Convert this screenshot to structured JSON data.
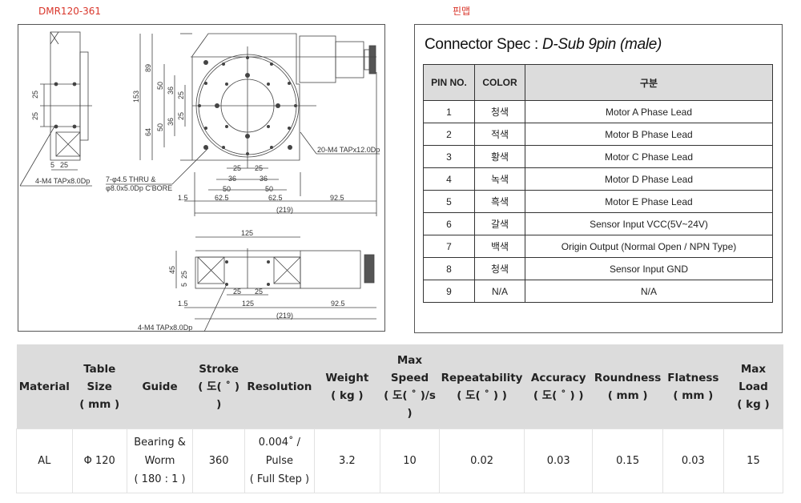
{
  "model_label": "DMR120-361",
  "pinmap_label": "핀맵",
  "drawing": {
    "side_view": {
      "dims": [
        "25",
        "25",
        "5",
        "25"
      ],
      "callout": "4-M4 TAPx8.0Dp"
    },
    "top_view": {
      "vertical_dims": [
        "153",
        "89",
        "64",
        "50",
        "36",
        "25",
        "50",
        "36",
        "25"
      ],
      "bottom_dims": [
        "25",
        "25",
        "36",
        "36",
        "50",
        "50",
        "1.5",
        "62.5",
        "62.5",
        "92.5",
        "(219)"
      ],
      "callout_holes_line1": "7-φ4.5 THRU &",
      "callout_holes_line2": "φ8.0x5.0Dp C'BORE",
      "callout_taps": "20-M4 TAPx12.0Dp"
    },
    "front_view": {
      "dims": [
        "125",
        "45",
        "25",
        "5",
        "25",
        "25",
        "1.5",
        "125",
        "92.5",
        "(219)"
      ],
      "callout": "4-M4 TAPx8.0Dp"
    }
  },
  "connector": {
    "title_prefix": "Connector Spec : ",
    "title_type": "D-Sub 9pin  (male)",
    "headers": [
      "PIN NO.",
      "COLOR",
      "구분"
    ],
    "rows": [
      [
        "1",
        "청색",
        "Motor A Phase Lead"
      ],
      [
        "2",
        "적색",
        "Motor B Phase Lead"
      ],
      [
        "3",
        "황색",
        "Motor C Phase Lead"
      ],
      [
        "4",
        "녹색",
        "Motor D Phase Lead"
      ],
      [
        "5",
        "흑색",
        "Motor E Phase Lead"
      ],
      [
        "6",
        "갈색",
        "Sensor Input VCC(5V~24V)"
      ],
      [
        "7",
        "백색",
        "Origin Output (Normal Open / NPN Type)"
      ],
      [
        "8",
        "청색",
        "Sensor Input GND"
      ],
      [
        "9",
        "N/A",
        "N/A"
      ]
    ]
  },
  "spec": {
    "headers": [
      [
        "Material"
      ],
      [
        "Table",
        "Size",
        "( mm )"
      ],
      [
        "Guide"
      ],
      [
        "Stroke",
        "( 도( ˚ ) )"
      ],
      [
        "Resolution"
      ],
      [
        "Weight",
        "( kg )"
      ],
      [
        "Max",
        "Speed",
        "( 도( ˚ )/s )"
      ],
      [
        "Repeatability",
        "( 도( ˚ ) )"
      ],
      [
        "Accuracy",
        "( 도( ˚ ) )"
      ],
      [
        "Roundness",
        "( mm )"
      ],
      [
        "Flatness",
        "( mm )"
      ],
      [
        "Max Load",
        "( kg )"
      ]
    ],
    "values": [
      [
        "AL"
      ],
      [
        "Φ 120"
      ],
      [
        "Bearing &",
        "Worm",
        "( 180 : 1 )"
      ],
      [
        "360"
      ],
      [
        "0.004˚ /",
        "Pulse",
        "( Full Step )"
      ],
      [
        "3.2"
      ],
      [
        "10"
      ],
      [
        "0.02"
      ],
      [
        "0.03"
      ],
      [
        "0.15"
      ],
      [
        "0.03"
      ],
      [
        "15"
      ]
    ]
  },
  "colors": {
    "label_red": "#d9362b",
    "header_gray": "#dcdcdc"
  }
}
